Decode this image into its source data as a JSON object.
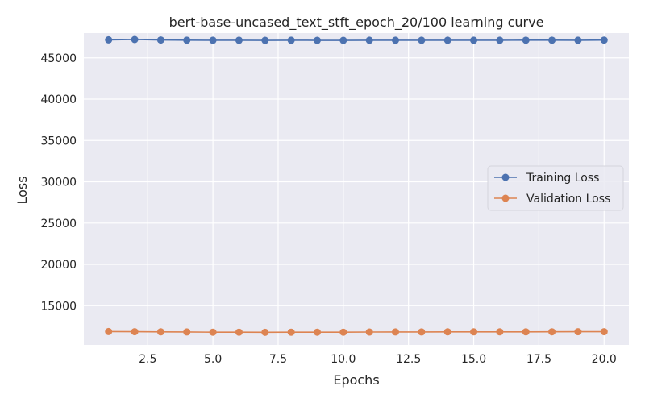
{
  "chart_data": {
    "type": "line",
    "title": "bert-base-uncased_text_stft_epoch_20/100 learning curve",
    "xlabel": "Epochs",
    "ylabel": "Loss",
    "xlim": [
      0.05,
      20.95
    ],
    "ylim": [
      10250,
      48000
    ],
    "x_ticks": [
      2.5,
      5.0,
      7.5,
      10.0,
      12.5,
      15.0,
      17.5,
      20.0
    ],
    "x_tick_labels": [
      "2.5",
      "5.0",
      "7.5",
      "10.0",
      "12.5",
      "15.0",
      "17.5",
      "20.0"
    ],
    "y_ticks": [
      15000,
      20000,
      25000,
      30000,
      35000,
      40000,
      45000
    ],
    "y_tick_labels": [
      "15000",
      "20000",
      "25000",
      "30000",
      "35000",
      "40000",
      "45000"
    ],
    "grid": true,
    "legend_position": "center-right",
    "x": [
      1,
      2,
      3,
      4,
      5,
      6,
      7,
      8,
      9,
      10,
      11,
      12,
      13,
      14,
      15,
      16,
      17,
      18,
      19,
      20
    ],
    "series": [
      {
        "name": "Training Loss",
        "color": "#4c72b0",
        "values": [
          47180,
          47220,
          47160,
          47140,
          47130,
          47130,
          47120,
          47130,
          47120,
          47120,
          47130,
          47130,
          47130,
          47130,
          47130,
          47130,
          47140,
          47140,
          47130,
          47150
        ]
      },
      {
        "name": "Validation Loss",
        "color": "#dd8452",
        "values": [
          11870,
          11850,
          11830,
          11820,
          11790,
          11790,
          11780,
          11790,
          11790,
          11790,
          11810,
          11820,
          11820,
          11830,
          11830,
          11830,
          11830,
          11840,
          11850,
          11850
        ]
      }
    ]
  }
}
